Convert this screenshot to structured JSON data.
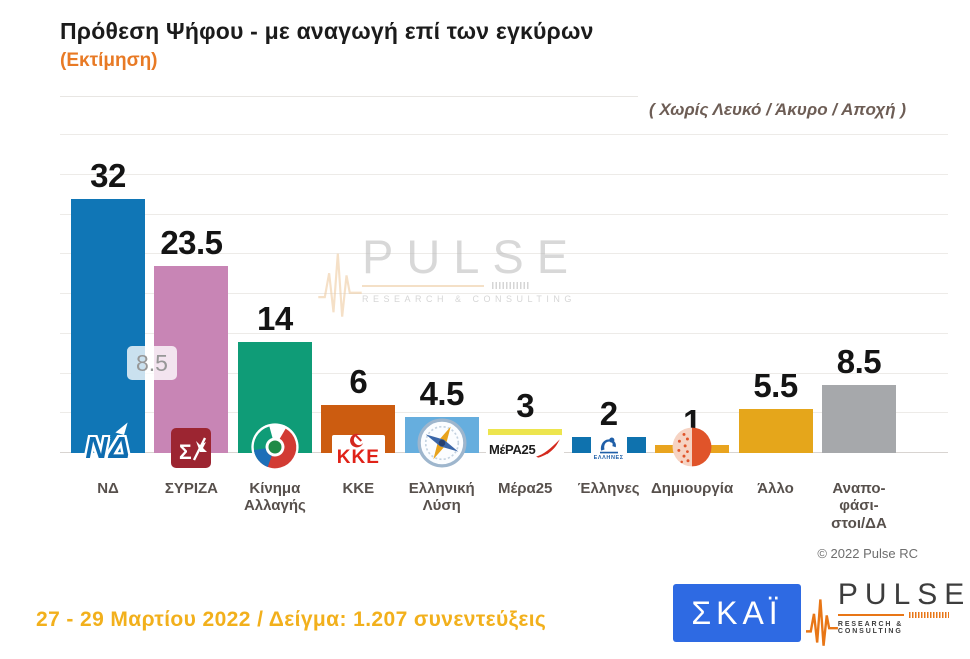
{
  "header": {
    "title": "Πρόθεση Ψήφου - με αναγωγή επί των εγκύρων",
    "subtitle": "(Εκτίμηση)",
    "note": "( Χωρίς Λευκό / Άκυρο / Αποχή )"
  },
  "watermark": {
    "name": "PULSE",
    "tagline": "RESEARCH & CONSULTING"
  },
  "chart_data": {
    "type": "bar",
    "title": "Πρόθεση Ψήφου - με αναγωγή επί των εγκύρων",
    "subtitle": "(Εκτίμηση)",
    "categories": [
      "ΝΔ",
      "ΣΥΡΙΖΑ",
      "Κίνημα Αλλαγής",
      "ΚΚΕ",
      "Ελληνική Λύση",
      "Μέρα25",
      "Έλληνες",
      "Δημιουργία",
      "Άλλο",
      "Αναποφάσιστοι/ΔΑ"
    ],
    "display_labels": [
      "ΝΔ",
      "ΣΥΡΙΖΑ",
      "Κίνημα\nΑλλαγής",
      "ΚΚΕ",
      "Ελληνική\nΛύση",
      "Μέρα25",
      "Έλληνες",
      "Δημιουργία",
      "Άλλο",
      "Αναπο-\nφάσι-\nστοι/ΔΑ"
    ],
    "values": [
      32,
      23.5,
      14,
      6,
      4.5,
      3,
      2,
      1,
      5.5,
      8.5
    ],
    "value_labels": [
      "32",
      "23.5",
      "14",
      "6",
      "4.5",
      "3",
      "2",
      "1",
      "5.5",
      "8.5"
    ],
    "colors": [
      "#1076b6",
      "#c885b5",
      "#0f9c77",
      "#cc5c10",
      "#66aede",
      "#ede54e",
      "#0f72ae",
      "#e9a41f",
      "#e5a61b",
      "#a6a8ab"
    ],
    "party_ids": [
      "nd",
      "syriza",
      "kinima-allagis",
      "kke",
      "elliniki-lysi",
      "mera25",
      "ellines",
      "dimiourgia",
      "allo",
      "anapofasistoi-da"
    ],
    "logos": [
      "nd-logo",
      "syriza-logo",
      "kinima-allagis-logo",
      "kke-logo",
      "elliniki-lysi-logo",
      "mera25-logo",
      "ellines-logo",
      "dimiourgia-logo",
      null,
      null
    ],
    "ylim": [
      0,
      40
    ],
    "gridline_step": 5,
    "grid": true,
    "legend": false,
    "overlay_label": "8.5"
  },
  "footer": {
    "fieldwork": "27 - 29 Μαρτίου  2022  /  Δείγμα:  1.207 συνεντεύξεις",
    "copyright": "© 2022 Pulse RC",
    "skai_logo_text": "ΣΚΑΪ",
    "pulse_logo_text": "PULSE",
    "pulse_tagline": "RESEARCH & CONSULTING"
  }
}
